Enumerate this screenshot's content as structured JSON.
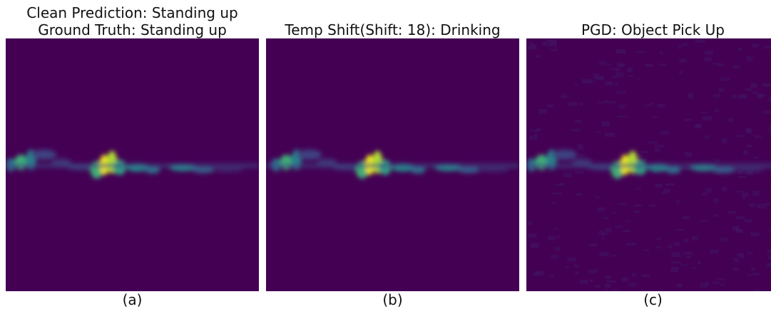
{
  "chart_data": [
    {
      "type": "heatmap",
      "title_lines": [
        "Clean Prediction: Standing up",
        "Ground Truth: Standing up"
      ],
      "caption": "(a)",
      "noise": 0.0
    },
    {
      "type": "heatmap",
      "title_lines": [
        "",
        "Temp Shift(Shift: 18): Drinking"
      ],
      "caption": "(b)",
      "noise": 0.0
    },
    {
      "type": "heatmap",
      "title_lines": [
        "",
        "PGD: Object Pick Up"
      ],
      "caption": "(c)",
      "noise": 0.35
    }
  ],
  "colors": {
    "background": "#440154",
    "colormap": "viridis"
  }
}
